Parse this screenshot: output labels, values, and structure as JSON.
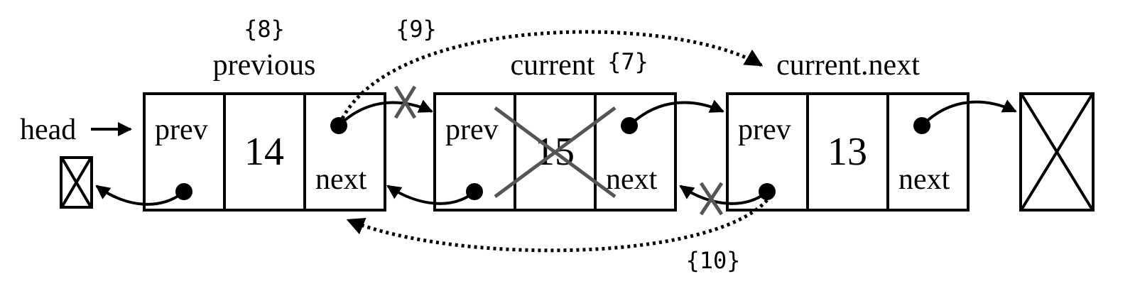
{
  "head_label": "head",
  "nodes": [
    {
      "prev_label": "prev",
      "value": "14",
      "next_label": "next",
      "above_label": "previous",
      "step": "{8}"
    },
    {
      "prev_label": "prev",
      "value": "15",
      "next_label": "next",
      "above_label": "current",
      "step": "{7}",
      "removed": true
    },
    {
      "prev_label": "prev",
      "value": "13",
      "next_label": "next",
      "above_label": "current.next"
    }
  ],
  "steps": {
    "next_link": "{9}",
    "prev_link": "{10}"
  },
  "colors": {
    "line": "#000000",
    "cross": "#555555"
  }
}
